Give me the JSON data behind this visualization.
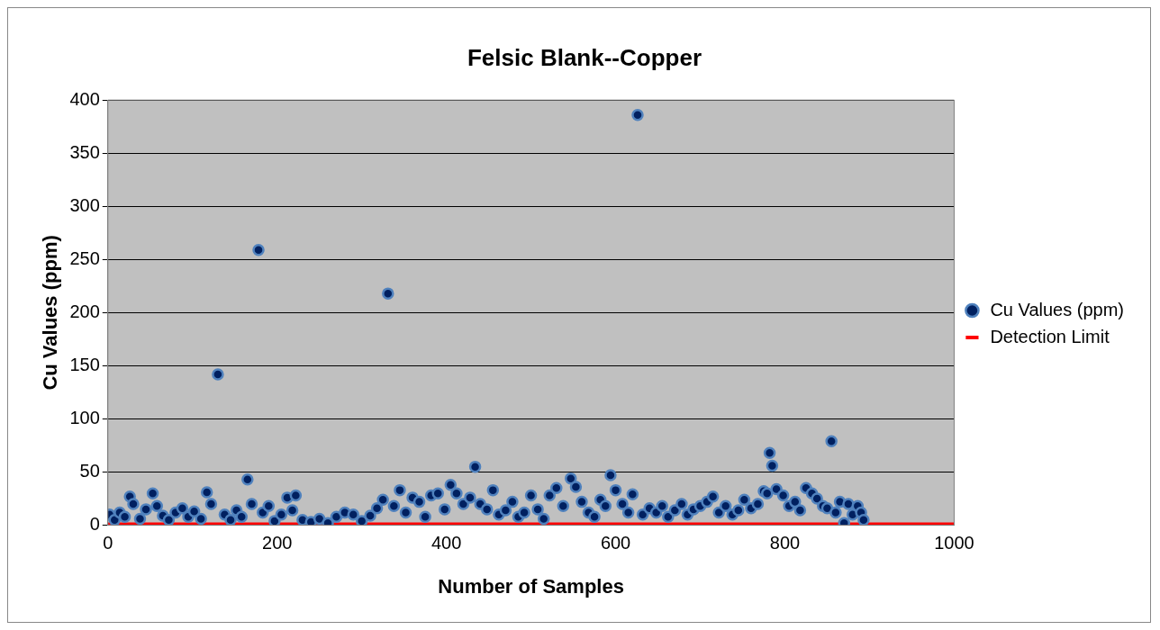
{
  "chart_data": {
    "type": "scatter",
    "title": "Felsic Blank--Copper",
    "xlabel": "Number of Samples",
    "ylabel": "Cu Values (ppm)",
    "xlim": [
      0,
      1000
    ],
    "xticks": [
      0,
      200,
      400,
      600,
      800,
      1000
    ],
    "ylim": [
      0,
      400
    ],
    "yticks": [
      0,
      50,
      100,
      150,
      200,
      250,
      300,
      350,
      400
    ],
    "grid": "y",
    "legend": "right",
    "series": [
      {
        "name": "Cu Values (ppm)",
        "marker": "circle",
        "color": "#002060",
        "x": [
          2,
          8,
          14,
          20,
          26,
          30,
          38,
          45,
          53,
          58,
          65,
          72,
          80,
          88,
          95,
          102,
          110,
          117,
          122,
          130,
          138,
          145,
          152,
          158,
          165,
          170,
          178,
          183,
          190,
          197,
          205,
          212,
          218,
          222,
          230,
          240,
          250,
          260,
          270,
          280,
          290,
          300,
          310,
          318,
          325,
          331,
          338,
          345,
          352,
          360,
          368,
          375,
          382,
          390,
          398,
          405,
          412,
          420,
          428,
          434,
          440,
          448,
          455,
          462,
          470,
          478,
          485,
          492,
          500,
          508,
          515,
          522,
          530,
          538,
          547,
          553,
          560,
          568,
          575,
          582,
          588,
          594,
          600,
          608,
          615,
          620,
          626,
          632,
          640,
          648,
          655,
          662,
          670,
          678,
          685,
          692,
          700,
          708,
          715,
          722,
          730,
          738,
          745,
          752,
          760,
          768,
          775,
          779,
          782,
          785,
          790,
          798,
          805,
          812,
          818,
          825,
          832,
          838,
          845,
          850,
          855,
          860,
          865,
          870,
          875,
          880,
          886,
          890,
          893
        ],
        "values": [
          10,
          5,
          12,
          8,
          27,
          20,
          6,
          15,
          30,
          18,
          9,
          5,
          12,
          16,
          8,
          13,
          6,
          31,
          20,
          142,
          10,
          5,
          14,
          8,
          43,
          20,
          259,
          12,
          18,
          4,
          10,
          26,
          14,
          28,
          5,
          3,
          6,
          2,
          8,
          12,
          10,
          4,
          9,
          16,
          24,
          218,
          18,
          33,
          12,
          26,
          22,
          8,
          28,
          30,
          15,
          38,
          30,
          20,
          26,
          55,
          20,
          15,
          33,
          10,
          14,
          22,
          8,
          12,
          28,
          15,
          6,
          28,
          35,
          18,
          44,
          36,
          22,
          12,
          8,
          24,
          18,
          47,
          33,
          20,
          12,
          29,
          386,
          10,
          16,
          12,
          18,
          8,
          14,
          20,
          10,
          15,
          18,
          22,
          27,
          12,
          18,
          10,
          14,
          24,
          16,
          20,
          32,
          30,
          68,
          56,
          34,
          28,
          18,
          22,
          14,
          35,
          30,
          25,
          18,
          16,
          79,
          12,
          22,
          2,
          20,
          10,
          18,
          12,
          5
        ]
      },
      {
        "name": "Detection Limit",
        "type": "line",
        "marker": "none",
        "color": "#ff0000",
        "x": [
          0,
          1000
        ],
        "values": [
          1,
          1
        ]
      }
    ]
  }
}
